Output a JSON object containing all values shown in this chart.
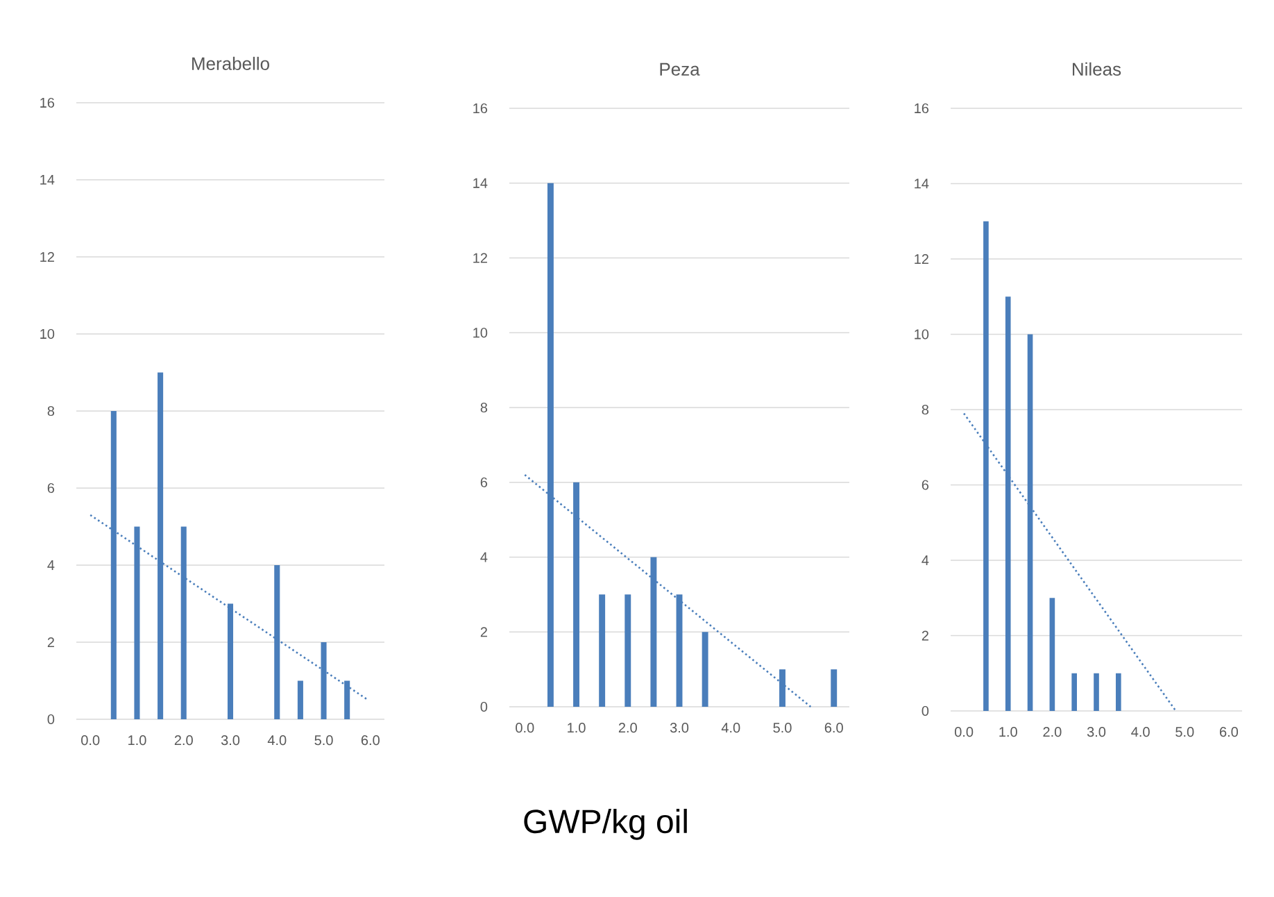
{
  "chart_data": [
    {
      "type": "bar",
      "title": "Merabello",
      "xlim": [
        -0.3,
        6.3
      ],
      "ylim": [
        0,
        16
      ],
      "grid": "y",
      "xticks": [
        {
          "value": 0,
          "label": "0.0"
        },
        {
          "value": 1,
          "label": "1.0"
        },
        {
          "value": 2,
          "label": "2.0"
        },
        {
          "value": 3,
          "label": "3.0"
        },
        {
          "value": 4,
          "label": "4.0"
        },
        {
          "value": 5,
          "label": "5.0"
        },
        {
          "value": 6,
          "label": "6.0"
        }
      ],
      "yticks": [
        0,
        2,
        4,
        6,
        8,
        10,
        12,
        14,
        16
      ],
      "series": [
        {
          "color": "#4a7ebb",
          "x": [
            0.5,
            1.0,
            1.5,
            2.0,
            3.0,
            4.0,
            4.5,
            5.0,
            5.5
          ],
          "values": [
            8,
            5,
            9,
            5,
            3,
            4,
            1,
            2,
            1
          ]
        },
        {
          "type": "line",
          "color": "#4a7ebb",
          "line_style": "dotted",
          "x": [
            0,
            5.95
          ],
          "values": [
            5.3,
            0.5
          ]
        }
      ]
    },
    {
      "type": "bar",
      "title": "Peza",
      "xlabel": "GWP/kg oil",
      "xlim": [
        -0.3,
        6.3
      ],
      "ylim": [
        0,
        16
      ],
      "grid": "y",
      "xticks": [
        {
          "value": 0,
          "label": "0.0"
        },
        {
          "value": 1,
          "label": "1.0"
        },
        {
          "value": 2,
          "label": "2.0"
        },
        {
          "value": 3,
          "label": "3.0"
        },
        {
          "value": 4,
          "label": "4.0"
        },
        {
          "value": 5,
          "label": "5.0"
        },
        {
          "value": 6,
          "label": "6.0"
        }
      ],
      "yticks": [
        0,
        2,
        4,
        6,
        8,
        10,
        12,
        14,
        16
      ],
      "series": [
        {
          "color": "#4a7ebb",
          "x": [
            0.5,
            1.0,
            1.5,
            2.0,
            2.5,
            3.0,
            3.5,
            5.0,
            6.0
          ],
          "values": [
            14,
            6,
            3,
            3,
            4,
            3,
            2,
            1,
            1
          ]
        },
        {
          "type": "line",
          "color": "#4a7ebb",
          "line_style": "dotted",
          "x": [
            0,
            5.55
          ],
          "values": [
            6.2,
            0
          ]
        }
      ]
    },
    {
      "type": "bar",
      "title": "Nileas",
      "xlim": [
        -0.3,
        6.3
      ],
      "ylim": [
        0,
        16
      ],
      "grid": "y",
      "xticks": [
        {
          "value": 0,
          "label": "0.0"
        },
        {
          "value": 1,
          "label": "1.0"
        },
        {
          "value": 2,
          "label": "2.0"
        },
        {
          "value": 3,
          "label": "3.0"
        },
        {
          "value": 4,
          "label": "4.0"
        },
        {
          "value": 5,
          "label": "5.0"
        },
        {
          "value": 6,
          "label": "6.0"
        }
      ],
      "yticks": [
        0,
        2,
        4,
        6,
        8,
        10,
        12,
        14,
        16
      ],
      "series": [
        {
          "color": "#4a7ebb",
          "x": [
            0.5,
            1.0,
            1.5,
            2.0,
            2.5,
            3.0,
            3.5
          ],
          "values": [
            13,
            11,
            10,
            3,
            1,
            1,
            1
          ]
        },
        {
          "type": "line",
          "color": "#4a7ebb",
          "line_style": "dotted",
          "x": [
            0,
            4.8
          ],
          "values": [
            7.9,
            0
          ]
        }
      ]
    }
  ]
}
